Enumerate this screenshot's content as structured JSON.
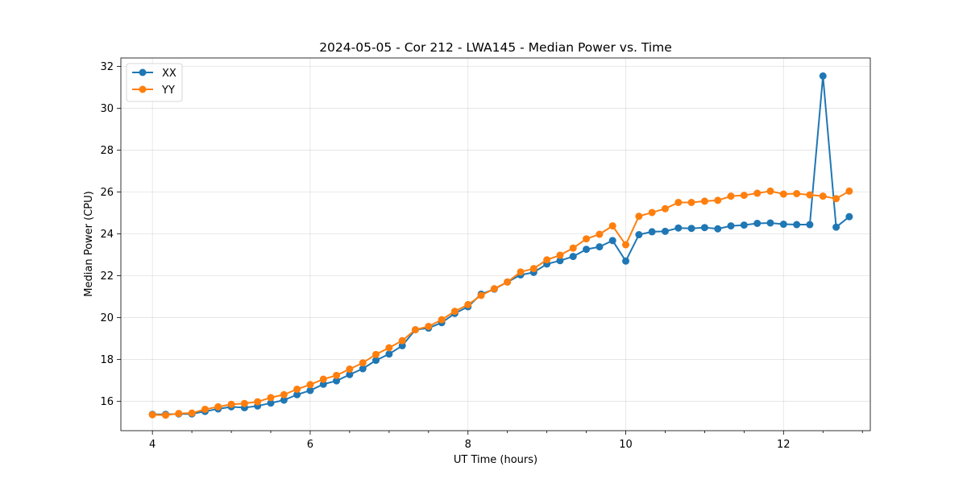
{
  "chart_data": {
    "type": "line",
    "title": "2024-05-05 - Cor 212 - LWA145 - Median Power vs. Time",
    "xlabel": "UT Time (hours)",
    "ylabel": "Median Power (CPU)",
    "xlim": [
      3.6,
      13.1
    ],
    "ylim": [
      14.6,
      32.4
    ],
    "xticks": [
      4,
      6,
      8,
      10,
      12
    ],
    "xtick_labels": [
      "4",
      "6",
      "8",
      "10",
      "12"
    ],
    "yticks": [
      16,
      18,
      20,
      22,
      24,
      26,
      28,
      30,
      32
    ],
    "ytick_labels": [
      "16",
      "18",
      "20",
      "22",
      "24",
      "26",
      "28",
      "30",
      "32"
    ],
    "grid": true,
    "legend_position": "top-left",
    "x": [
      4.0,
      4.167,
      4.333,
      4.5,
      4.667,
      4.833,
      5.0,
      5.167,
      5.333,
      5.5,
      5.667,
      5.833,
      6.0,
      6.167,
      6.333,
      6.5,
      6.667,
      6.833,
      7.0,
      7.167,
      7.333,
      7.5,
      7.667,
      7.833,
      8.0,
      8.167,
      8.333,
      8.5,
      8.667,
      8.833,
      9.0,
      9.167,
      9.333,
      9.5,
      9.667,
      9.833,
      10.0,
      10.167,
      10.333,
      10.5,
      10.667,
      10.833,
      11.0,
      11.167,
      11.333,
      11.5,
      11.667,
      11.833,
      12.0,
      12.167,
      12.333,
      12.5,
      12.667,
      12.833
    ],
    "series": [
      {
        "name": "XX",
        "color": "#1f77b4",
        "values": [
          15.38,
          15.38,
          15.4,
          15.4,
          15.52,
          15.64,
          15.74,
          15.7,
          15.78,
          15.92,
          16.06,
          16.32,
          16.52,
          16.82,
          16.98,
          17.28,
          17.56,
          17.96,
          18.26,
          18.66,
          19.42,
          19.5,
          19.76,
          20.2,
          20.52,
          21.12,
          21.36,
          21.7,
          22.04,
          22.16,
          22.56,
          22.72,
          22.92,
          23.26,
          23.38,
          23.68,
          22.7,
          23.96,
          24.1,
          24.12,
          24.28,
          24.26,
          24.3,
          24.24,
          24.38,
          24.42,
          24.5,
          24.52,
          24.46,
          24.44,
          24.44,
          31.54,
          24.32,
          24.82
        ]
      },
      {
        "name": "YY",
        "color": "#ff7f0e",
        "values": [
          15.36,
          15.34,
          15.42,
          15.44,
          15.62,
          15.74,
          15.86,
          15.9,
          15.98,
          16.18,
          16.32,
          16.58,
          16.8,
          17.06,
          17.24,
          17.54,
          17.84,
          18.24,
          18.56,
          18.9,
          19.42,
          19.58,
          19.9,
          20.3,
          20.62,
          21.06,
          21.38,
          21.7,
          22.18,
          22.34,
          22.76,
          22.98,
          23.32,
          23.76,
          23.98,
          24.38,
          23.48,
          24.84,
          25.02,
          25.2,
          25.5,
          25.5,
          25.56,
          25.6,
          25.8,
          25.84,
          25.94,
          26.04,
          25.9,
          25.92,
          25.86,
          25.8,
          25.68,
          26.04
        ]
      }
    ]
  }
}
